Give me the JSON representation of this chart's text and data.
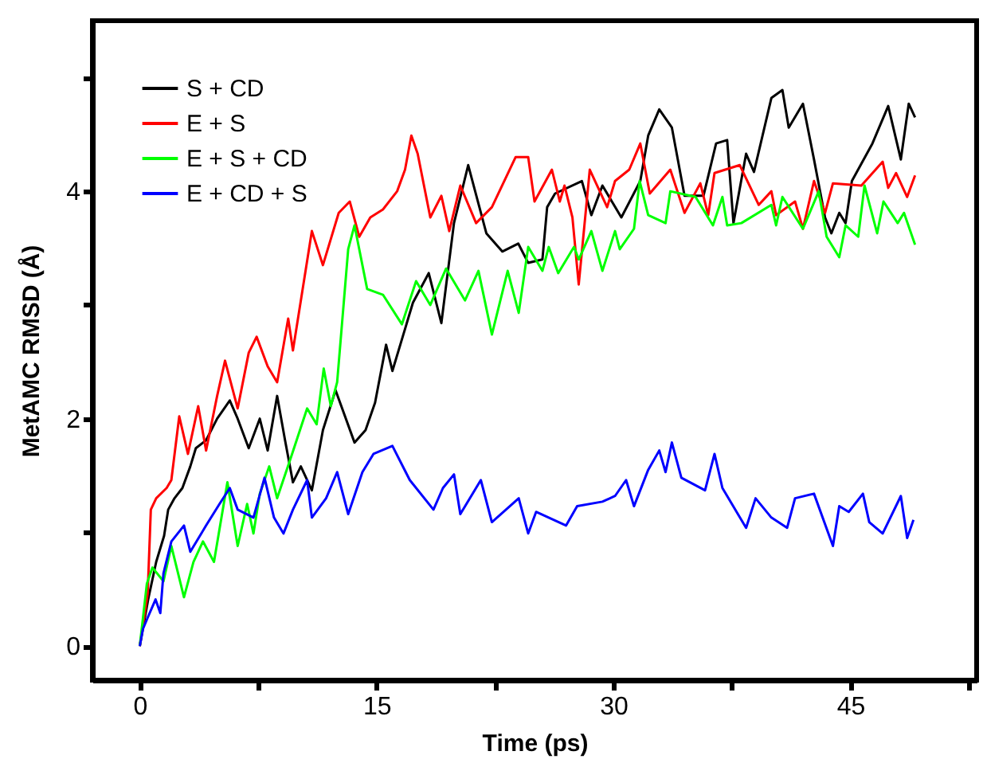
{
  "chart_data": {
    "type": "line",
    "xlabel": "Time (ps)",
    "ylabel": "MetAMC RMSD (Å)",
    "xlim": [
      -3,
      53
    ],
    "ylim": [
      -0.3,
      5.5
    ],
    "xticks": [
      0,
      {
        "value": 7.5,
        "label": null
      },
      15,
      {
        "value": 22.5,
        "label": null
      },
      30,
      {
        "value": 37.5,
        "label": null
      },
      45,
      {
        "value": 52.5,
        "label": null
      }
    ],
    "yticks": [
      0,
      {
        "value": 1,
        "label": null
      },
      2,
      {
        "value": 3,
        "label": null
      },
      4,
      {
        "value": 5,
        "label": null
      }
    ],
    "grid": false,
    "legend": "top left",
    "marker": "none",
    "line_style": "solid",
    "series": [
      {
        "name": "S + CD",
        "color": "#000000",
        "x": [
          0,
          0.53,
          1.04,
          1.54,
          1.8,
          2.2,
          2.7,
          3.2,
          3.55,
          4.2,
          4.9,
          5.7,
          6.2,
          6.9,
          7.6,
          8.1,
          8.7,
          9.2,
          9.7,
          10.2,
          10.9,
          11.6,
          12.4,
          13.6,
          14.3,
          14.9,
          15.6,
          16.0,
          17.3,
          18.3,
          19.1,
          19.9,
          20.8,
          21.95,
          22.96,
          23.97,
          24.6,
          25.5,
          25.8,
          26.3,
          28.0,
          28.6,
          29.3,
          30.5,
          31.7,
          32.2,
          32.9,
          33.7,
          34.5,
          35.7,
          36.5,
          37.2,
          37.6,
          38.4,
          38.9,
          40.0,
          40.7,
          41.1,
          42.0,
          42.7,
          43.4,
          43.8,
          44.3,
          44.7,
          45.1,
          46.4,
          47.4,
          48.2,
          48.7,
          49.1
        ],
        "values": [
          0,
          0.41,
          0.74,
          0.97,
          1.2,
          1.3,
          1.39,
          1.58,
          1.74,
          1.81,
          2.0,
          2.16,
          2.0,
          1.74,
          2.0,
          1.72,
          2.2,
          1.81,
          1.44,
          1.58,
          1.37,
          1.9,
          2.25,
          1.79,
          1.9,
          2.14,
          2.65,
          2.42,
          3.02,
          3.28,
          2.84,
          3.72,
          4.23,
          3.63,
          3.47,
          3.54,
          3.37,
          3.4,
          3.86,
          3.98,
          4.09,
          3.79,
          4.05,
          3.77,
          4.09,
          4.49,
          4.72,
          4.56,
          3.96,
          3.96,
          4.42,
          4.45,
          3.72,
          4.33,
          4.17,
          4.82,
          4.89,
          4.56,
          4.77,
          4.28,
          3.77,
          3.63,
          3.81,
          3.72,
          4.09,
          4.42,
          4.75,
          4.28,
          4.77,
          4.65
        ]
      },
      {
        "name": "E + S",
        "color": "#ff0000",
        "x": [
          0,
          0.5,
          0.7,
          1.04,
          1.7,
          2.0,
          2.5,
          3.05,
          3.7,
          4.2,
          4.9,
          5.4,
          6.2,
          6.9,
          7.4,
          8.1,
          8.7,
          9.4,
          9.7,
          10.9,
          11.6,
          12.6,
          13.3,
          13.9,
          14.6,
          15.4,
          16.3,
          16.8,
          17.2,
          17.6,
          18.4,
          19.1,
          19.6,
          20.3,
          21.3,
          22.3,
          23.8,
          24.6,
          25.0,
          26.1,
          26.6,
          26.9,
          27.4,
          27.8,
          28.5,
          29.6,
          30.1,
          31.0,
          31.7,
          32.3,
          33.6,
          34.5,
          35.5,
          36.0,
          36.4,
          38.0,
          39.2,
          40.0,
          40.3,
          41.5,
          42.0,
          42.7,
          43.4,
          43.9,
          45.7,
          47.05,
          47.4,
          47.9,
          48.6,
          49.1
        ],
        "values": [
          0,
          0.46,
          1.2,
          1.3,
          1.39,
          1.46,
          2.02,
          1.69,
          2.11,
          1.72,
          2.2,
          2.51,
          2.09,
          2.58,
          2.72,
          2.46,
          2.32,
          2.88,
          2.6,
          3.65,
          3.35,
          3.81,
          3.91,
          3.6,
          3.77,
          3.84,
          4.0,
          4.19,
          4.49,
          4.33,
          3.77,
          3.96,
          3.65,
          4.05,
          3.72,
          3.86,
          4.3,
          4.3,
          3.91,
          4.19,
          3.91,
          4.05,
          3.77,
          3.18,
          4.19,
          3.86,
          4.09,
          4.19,
          4.42,
          3.98,
          4.19,
          3.81,
          4.07,
          3.79,
          4.16,
          4.23,
          3.88,
          4.0,
          3.79,
          3.91,
          3.67,
          4.09,
          3.81,
          4.07,
          4.05,
          4.26,
          4.03,
          4.16,
          3.95,
          4.14
        ]
      },
      {
        "name": "E + S + CD",
        "color": "#00ff00",
        "x": [
          0,
          0.45,
          0.8,
          1.5,
          2.0,
          2.8,
          3.4,
          4.0,
          4.7,
          5.55,
          6.2,
          6.8,
          7.2,
          7.6,
          8.2,
          8.7,
          9.6,
          10.6,
          11.2,
          11.65,
          12.1,
          12.5,
          13.2,
          13.6,
          14.4,
          15.4,
          16.6,
          17.5,
          18.4,
          19.4,
          20.6,
          21.45,
          22.3,
          23.3,
          24.0,
          24.6,
          25.5,
          25.9,
          26.5,
          27.5,
          27.8,
          28.6,
          29.3,
          30.1,
          30.4,
          31.3,
          31.66,
          32.2,
          33.3,
          33.6,
          35.2,
          36.3,
          36.9,
          37.2,
          38.1,
          40.0,
          40.3,
          40.7,
          42.0,
          43.0,
          43.5,
          44.3,
          44.7,
          45.5,
          45.9,
          46.7,
          47.1,
          48.0,
          48.4,
          49.1
        ],
        "values": [
          0,
          0.55,
          0.69,
          0.57,
          0.88,
          0.43,
          0.74,
          0.92,
          0.74,
          1.44,
          0.88,
          1.25,
          0.99,
          1.34,
          1.58,
          1.3,
          1.67,
          2.09,
          1.95,
          2.44,
          2.11,
          2.32,
          3.49,
          3.7,
          3.14,
          3.09,
          2.83,
          3.21,
          3.0,
          3.32,
          3.04,
          3.3,
          2.74,
          3.3,
          2.93,
          3.51,
          3.3,
          3.51,
          3.28,
          3.51,
          3.4,
          3.65,
          3.3,
          3.65,
          3.49,
          3.67,
          4.09,
          3.79,
          3.72,
          4.0,
          3.95,
          3.7,
          3.95,
          3.7,
          3.72,
          3.88,
          3.7,
          3.95,
          3.67,
          4.0,
          3.6,
          3.42,
          3.7,
          3.6,
          4.05,
          3.63,
          3.91,
          3.72,
          3.81,
          3.53
        ]
      },
      {
        "name": "E + CD + S",
        "color": "#0000ff",
        "x": [
          0,
          0.2,
          0.5,
          1.0,
          1.3,
          1.5,
          2.0,
          2.8,
          3.2,
          4.2,
          5.05,
          5.7,
          6.2,
          7.2,
          7.9,
          8.5,
          9.1,
          9.7,
          10.6,
          10.9,
          11.8,
          12.5,
          13.2,
          14.1,
          14.8,
          16.0,
          17.1,
          18.6,
          19.2,
          19.9,
          20.3,
          21.6,
          22.3,
          24.0,
          24.6,
          25.1,
          27.0,
          27.7,
          29.3,
          30.1,
          30.8,
          31.3,
          32.2,
          32.9,
          33.3,
          33.7,
          34.3,
          35.8,
          36.4,
          36.9,
          38.4,
          39.0,
          40.0,
          41.0,
          41.5,
          42.7,
          43.9,
          44.3,
          44.9,
          45.8,
          46.2,
          47.05,
          48.2,
          48.6,
          49.0
        ],
        "values": [
          0,
          0.15,
          0.25,
          0.41,
          0.29,
          0.64,
          0.92,
          1.06,
          0.83,
          1.06,
          1.25,
          1.39,
          1.2,
          1.13,
          1.48,
          1.13,
          0.99,
          1.2,
          1.46,
          1.13,
          1.3,
          1.53,
          1.16,
          1.53,
          1.69,
          1.76,
          1.46,
          1.2,
          1.39,
          1.51,
          1.16,
          1.46,
          1.09,
          1.3,
          0.99,
          1.18,
          1.06,
          1.23,
          1.27,
          1.32,
          1.46,
          1.23,
          1.55,
          1.72,
          1.53,
          1.79,
          1.48,
          1.37,
          1.69,
          1.39,
          1.04,
          1.3,
          1.13,
          1.04,
          1.3,
          1.34,
          0.88,
          1.23,
          1.18,
          1.34,
          1.09,
          0.99,
          1.32,
          0.95,
          1.11
        ]
      }
    ]
  }
}
